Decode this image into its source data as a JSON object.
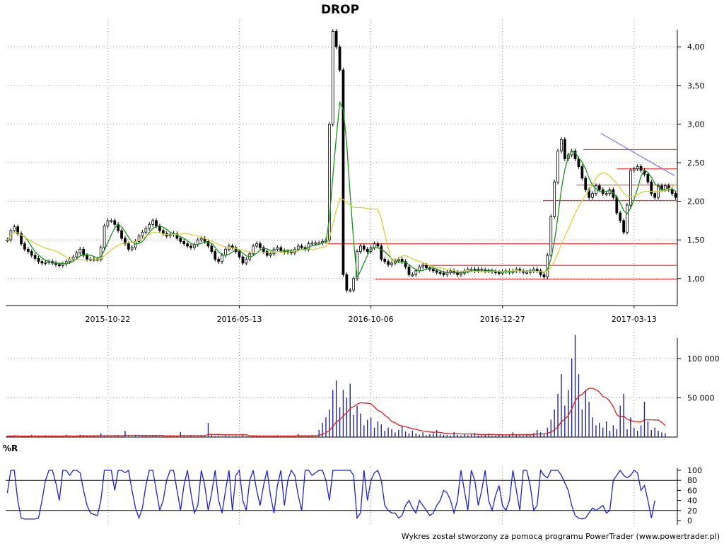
{
  "chart_data": [
    {
      "type": "candlestick",
      "title": "DROP",
      "x_tick_labels": [
        "2015-10-22",
        "2016-05-13",
        "2016-10-06",
        "2016-12-27",
        "2017-03-13"
      ],
      "y_tick_labels": [
        "1,00",
        "1,50",
        "2,00",
        "2,50",
        "3,00",
        "3,50",
        "4,00"
      ],
      "ylim": [
        0.65,
        4.35
      ],
      "grid": true,
      "series": [
        {
          "name": "",
          "role": "price-close",
          "values": [
            1.5,
            1.62,
            1.67,
            1.58,
            1.45,
            1.38,
            1.35,
            1.3,
            1.26,
            1.22,
            1.2,
            1.21,
            1.22,
            1.2,
            1.18,
            1.17,
            1.19,
            1.22,
            1.25,
            1.28,
            1.33,
            1.38,
            1.3,
            1.25,
            1.25,
            1.25,
            1.25,
            1.4,
            1.68,
            1.75,
            1.75,
            1.7,
            1.62,
            1.52,
            1.45,
            1.38,
            1.4,
            1.48,
            1.55,
            1.6,
            1.65,
            1.7,
            1.75,
            1.68,
            1.62,
            1.58,
            1.55,
            1.57,
            1.58,
            1.52,
            1.48,
            1.45,
            1.42,
            1.4,
            1.44,
            1.5,
            1.52,
            1.48,
            1.42,
            1.35,
            1.25,
            1.22,
            1.3,
            1.38,
            1.42,
            1.4,
            1.35,
            1.28,
            1.2,
            1.25,
            1.32,
            1.42,
            1.45,
            1.4,
            1.35,
            1.3,
            1.32,
            1.38,
            1.4,
            1.36,
            1.34,
            1.35,
            1.33,
            1.38,
            1.42,
            1.4,
            1.38,
            1.45,
            1.46,
            1.46,
            1.46,
            1.48,
            1.5,
            3.0,
            4.2,
            4.0,
            3.7,
            1.05,
            0.85,
            0.85,
            1.0,
            1.35,
            1.42,
            1.38,
            1.35,
            1.4,
            1.45,
            1.42,
            1.25,
            1.22,
            1.18,
            1.2,
            1.23,
            1.25,
            1.22,
            1.15,
            1.05,
            1.05,
            1.1,
            1.15,
            1.17,
            1.14,
            1.12,
            1.1,
            1.08,
            1.07,
            1.05,
            1.08,
            1.1,
            1.08,
            1.05,
            1.07,
            1.1,
            1.12,
            1.12,
            1.1,
            1.12,
            1.11,
            1.1,
            1.1,
            1.09,
            1.08,
            1.07,
            1.09,
            1.1,
            1.08,
            1.1,
            1.12,
            1.1,
            1.08,
            1.08,
            1.1,
            1.12,
            1.1,
            1.05,
            1.02,
            1.3,
            1.8,
            2.25,
            2.65,
            2.8,
            2.55,
            2.6,
            2.65,
            2.55,
            2.45,
            2.3,
            2.15,
            2.05,
            2.1,
            2.2,
            2.15,
            2.1,
            2.1,
            2.15,
            2.05,
            1.85,
            1.75,
            1.6,
            1.95,
            2.4,
            2.42,
            2.45,
            2.4,
            2.35,
            2.25,
            2.1,
            2.05,
            2.2,
            2.15,
            2.2,
            2.15,
            2.1,
            2.05
          ]
        },
        {
          "name": "",
          "role": "moving-average-short",
          "color": "#18921b"
        },
        {
          "name": "",
          "role": "moving-average-long",
          "color": "#d8cf3c"
        }
      ],
      "support_lines": [
        {
          "y": 2.67,
          "color": "#ff3a3a"
        },
        {
          "y": 2.42,
          "color": "#ff3a3a"
        },
        {
          "y": 2.21,
          "color": "#ff3a3a"
        },
        {
          "y": 2.01,
          "color": "#ff3a3a"
        },
        {
          "y": 1.45,
          "color": "#ff3a3a"
        },
        {
          "y": 1.17,
          "color": "#ff3a3a"
        },
        {
          "y": 0.99,
          "color": "#ff3a3a"
        }
      ],
      "trend_line": {
        "from": [
          0.886,
          2.88
        ],
        "to": [
          0.996,
          2.33
        ],
        "color": "#7b7bdf"
      }
    },
    {
      "type": "bar",
      "title": "",
      "y_tick_labels": [
        "50 000",
        "100 000"
      ],
      "ylim": [
        0,
        135000
      ],
      "series": [
        {
          "name": "",
          "role": "volume",
          "color": "#1f2496",
          "values": [
            1500,
            900,
            2100,
            1200,
            800,
            1500,
            1100,
            2600,
            900,
            1300,
            700,
            2200,
            1000,
            1500,
            900,
            1800,
            1200,
            2800,
            800,
            1600,
            1100,
            2900,
            1700,
            1300,
            900,
            2200,
            1000,
            4800,
            1200,
            1600,
            900,
            2400,
            1500,
            1100,
            8000,
            1300,
            900,
            2100,
            1600,
            1200,
            1800,
            900,
            2300,
            1400,
            1000,
            1700,
            1100,
            2400,
            1300,
            900,
            6500,
            1500,
            1000,
            2000,
            1200,
            900,
            1800,
            1100,
            18000,
            2500,
            1400,
            1900,
            1000,
            2300,
            1300,
            900,
            1700,
            1200,
            2000,
            900,
            1500,
            2100,
            1100,
            1600,
            900,
            1800,
            1300,
            1000,
            2200,
            1400,
            1100,
            1600,
            1200,
            900,
            4000,
            1700,
            1000,
            1300,
            2500,
            1100,
            9000,
            18000,
            25000,
            35000,
            60000,
            72000,
            38000,
            60000,
            50000,
            68000,
            28000,
            40000,
            30000,
            15000,
            22000,
            25000,
            12000,
            20000,
            16000,
            8000,
            12000,
            10000,
            6000,
            9000,
            14000,
            7000,
            5000,
            8000,
            4500,
            3000,
            6000,
            2500,
            3500,
            5000,
            9000,
            4000,
            3000,
            2500,
            2000,
            6500,
            3000,
            2000,
            4000,
            2500,
            3000,
            5500,
            2000,
            2200,
            3000,
            4500,
            2000,
            1800,
            3500,
            2500,
            2000,
            3000,
            6000,
            3500,
            2500,
            2000,
            4000,
            3000,
            5000,
            9000,
            6000,
            3500,
            12000,
            22000,
            35000,
            55000,
            80000,
            40000,
            60000,
            100000,
            130000,
            80000,
            35000,
            60000,
            45000,
            25000,
            15000,
            18000,
            12000,
            20000,
            8000,
            15000,
            10000,
            40000,
            55000,
            10000,
            25000,
            12000,
            8000,
            15000,
            45000,
            20000,
            9000,
            12000,
            8000,
            6000,
            5000
          ]
        },
        {
          "name": "",
          "role": "volume-average",
          "color": "#e01a1a"
        }
      ]
    },
    {
      "type": "line",
      "title": "%R",
      "y_tick_labels": [
        "0",
        "20",
        "40",
        "60",
        "80",
        "100"
      ],
      "ylim": [
        0,
        100
      ],
      "reference_lines": [
        20,
        80
      ],
      "series": [
        {
          "name": "",
          "role": "williams-r",
          "color": "#1f23c8",
          "values": [
            55,
            100,
            100,
            40,
            5,
            3,
            3,
            3,
            3,
            5,
            40,
            80,
            100,
            100,
            75,
            40,
            100,
            100,
            90,
            100,
            100,
            95,
            60,
            30,
            15,
            12,
            10,
            40,
            100,
            100,
            100,
            60,
            100,
            100,
            95,
            100,
            60,
            25,
            5,
            25,
            70,
            100,
            100,
            60,
            20,
            40,
            80,
            100,
            100,
            60,
            20,
            70,
            100,
            55,
            15,
            30,
            100,
            70,
            20,
            55,
            100,
            40,
            15,
            60,
            100,
            20,
            90,
            100,
            40,
            20,
            80,
            100,
            60,
            30,
            70,
            100,
            50,
            15,
            70,
            100,
            30,
            80,
            100,
            90,
            50,
            20,
            100,
            100,
            90,
            95,
            100,
            100,
            80,
            40,
            100,
            100,
            100,
            100,
            100,
            100,
            90,
            5,
            15,
            100,
            40,
            80,
            95,
            100,
            80,
            30,
            20,
            15,
            15,
            5,
            10,
            30,
            40,
            25,
            15,
            40,
            30,
            20,
            10,
            15,
            30,
            40,
            60,
            55,
            40,
            15,
            40,
            100,
            60,
            20,
            100,
            80,
            30,
            60,
            100,
            40,
            20,
            50,
            70,
            30,
            20,
            40,
            100,
            60,
            20,
            100,
            100,
            70,
            20,
            30,
            100,
            90,
            85,
            100,
            100,
            100,
            90,
            75,
            60,
            30,
            10,
            5,
            3,
            5,
            15,
            25,
            20,
            25,
            30,
            15,
            20,
            80,
            90,
            100,
            90,
            85,
            90,
            100,
            95,
            60,
            70,
            40,
            5,
            40
          ]
        }
      ]
    }
  ],
  "footer": {
    "credit": "Wykres został stworzony za pomocą programu PowerTrader (www.powertrader.pl)"
  }
}
